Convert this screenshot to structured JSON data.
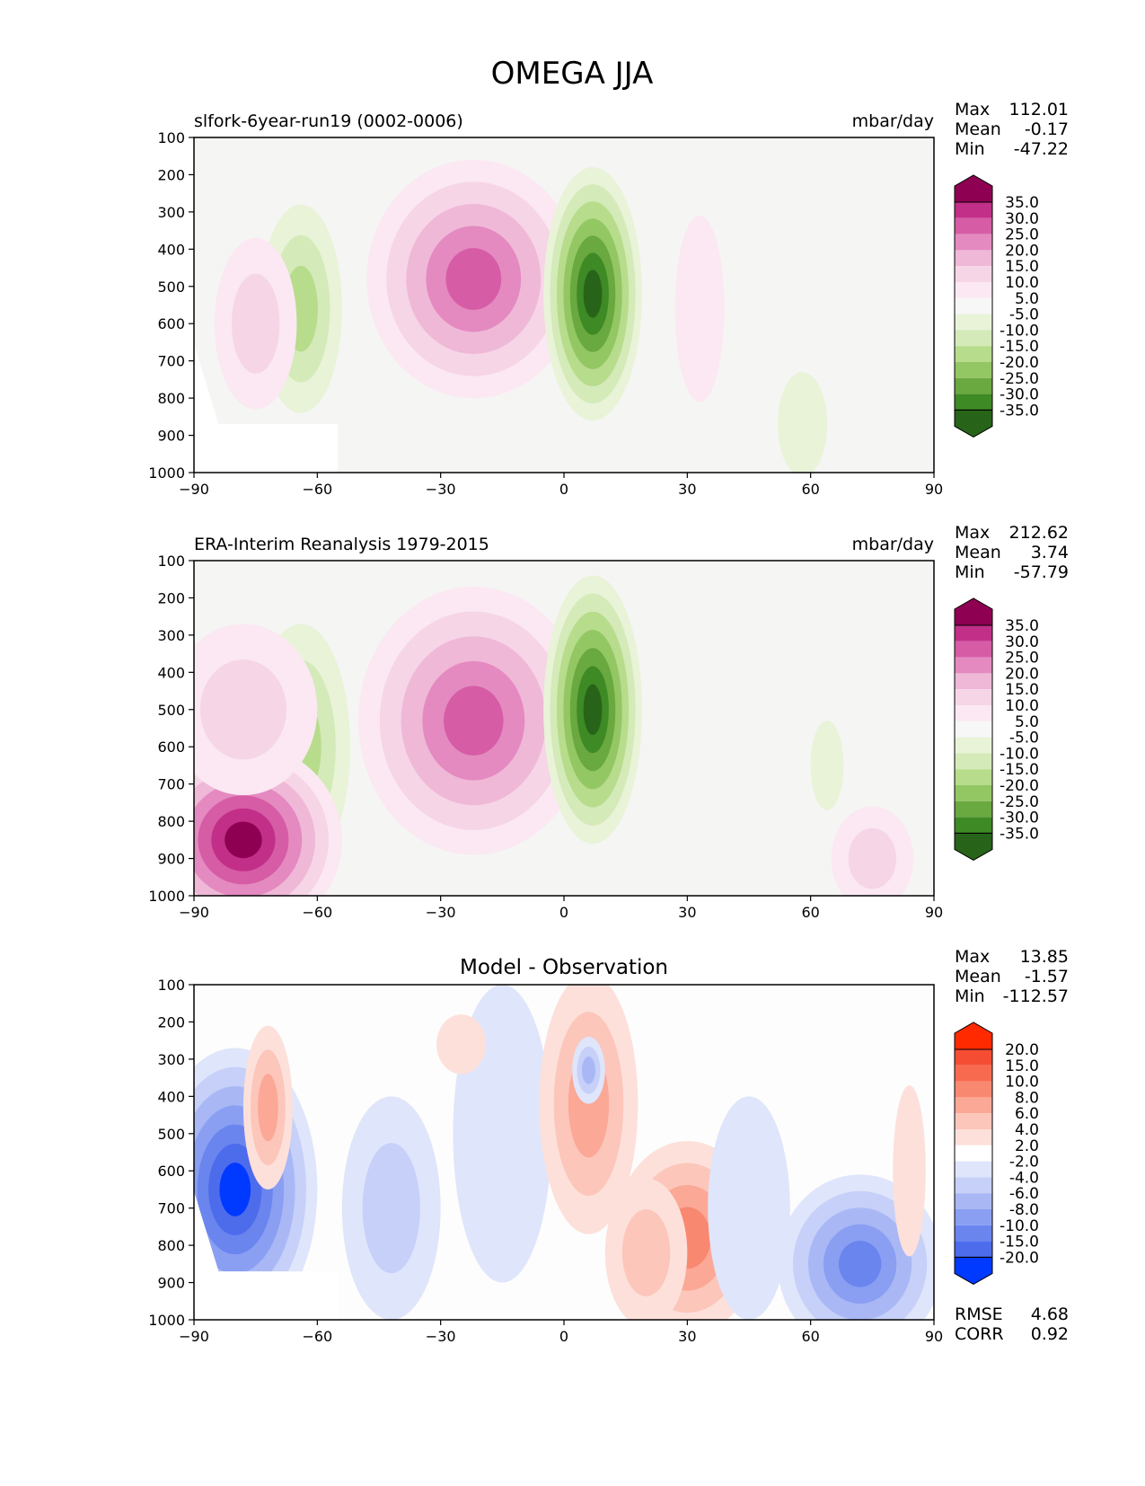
{
  "figure_title": "OMEGA JJA",
  "colors": {
    "frame": "#000000",
    "background_panel": "#f5f5f3",
    "pink": [
      "#fbe8f2",
      "#f6d5e7",
      "#efb8d7",
      "#e48ac0",
      "#d65ca6",
      "#c22f88",
      "#8e0152"
    ],
    "green": [
      "#e8f3d8",
      "#d4eab8",
      "#b7dc8c",
      "#93c763",
      "#6aa840",
      "#3e8a25",
      "#276419"
    ],
    "red": [
      "#fde0da",
      "#fcc6ba",
      "#fba896",
      "#f98870",
      "#f86a50",
      "#f54d33",
      "#ff2a00"
    ],
    "blue": [
      "#dfe5fb",
      "#c6d0f8",
      "#a9b8f5",
      "#8a9ff2",
      "#6b85ef",
      "#4d6cec",
      "#0039ff"
    ]
  },
  "chart_data": [
    {
      "type": "contour",
      "panel": "model",
      "title_left": "slfork-6year-run19 (0002-0006)",
      "title_right": "mbar/day",
      "stats": {
        "max_label": "Max",
        "max": "112.01",
        "mean_label": "Mean",
        "mean": "-0.17",
        "min_label": "Min",
        "min": "-47.22"
      },
      "x_ticks": [
        "−90",
        "−60",
        "−30",
        "0",
        "30",
        "60",
        "90"
      ],
      "x_values": [
        -90,
        -60,
        -30,
        0,
        30,
        60,
        90
      ],
      "y_ticks": [
        "100",
        "200",
        "300",
        "400",
        "500",
        "600",
        "700",
        "800",
        "900",
        "1000"
      ],
      "y_values": [
        100,
        200,
        300,
        400,
        500,
        600,
        700,
        800,
        900,
        1000
      ],
      "xlim": [
        -90,
        90
      ],
      "ylim": [
        1000,
        100
      ],
      "colorbar_labels": [
        "35.0",
        "30.0",
        "25.0",
        "20.0",
        "15.0",
        "10.0",
        "5.0",
        "-5.0",
        "-10.0",
        "-15.0",
        "-20.0",
        "-25.0",
        "-30.0",
        "-35.0"
      ],
      "features": [
        {
          "kind": "pink",
          "lat": -22,
          "p": 480,
          "w": 13,
          "h": 320,
          "levels": 5
        },
        {
          "kind": "green",
          "lat": 7,
          "p": 520,
          "w": 6,
          "h": 340,
          "levels": 7
        },
        {
          "kind": "green",
          "lat": -64,
          "p": 560,
          "w": 5,
          "h": 280,
          "levels": 3
        },
        {
          "kind": "pink",
          "lat": -75,
          "p": 600,
          "w": 5,
          "h": 230,
          "levels": 2
        },
        {
          "kind": "pink",
          "lat": 33,
          "p": 560,
          "w": 3,
          "h": 250,
          "levels": 1
        },
        {
          "kind": "green",
          "lat": 58,
          "p": 870,
          "w": 3,
          "h": 140,
          "levels": 1
        }
      ]
    },
    {
      "type": "contour",
      "panel": "observation",
      "title_left": "ERA-Interim Reanalysis 1979-2015",
      "title_right": "mbar/day",
      "stats": {
        "max_label": "Max",
        "max": "212.62",
        "mean_label": "Mean",
        "mean": "3.74",
        "min_label": "Min",
        "min": "-57.79"
      },
      "x_ticks": [
        "−90",
        "−60",
        "−30",
        "0",
        "30",
        "60",
        "90"
      ],
      "x_values": [
        -90,
        -60,
        -30,
        0,
        30,
        60,
        90
      ],
      "y_ticks": [
        "100",
        "200",
        "300",
        "400",
        "500",
        "600",
        "700",
        "800",
        "900",
        "1000"
      ],
      "y_values": [
        100,
        200,
        300,
        400,
        500,
        600,
        700,
        800,
        900,
        1000
      ],
      "xlim": [
        -90,
        90
      ],
      "ylim": [
        1000,
        100
      ],
      "colorbar_labels": [
        "35.0",
        "30.0",
        "25.0",
        "20.0",
        "15.0",
        "10.0",
        "5.0",
        "-5.0",
        "-10.0",
        "-15.0",
        "-20.0",
        "-25.0",
        "-30.0",
        "-35.0"
      ],
      "features": [
        {
          "kind": "pink",
          "lat": -22,
          "p": 530,
          "w": 14,
          "h": 360,
          "levels": 5
        },
        {
          "kind": "green",
          "lat": 7,
          "p": 500,
          "w": 6,
          "h": 360,
          "levels": 7
        },
        {
          "kind": "green",
          "lat": -64,
          "p": 600,
          "w": 6,
          "h": 330,
          "levels": 3
        },
        {
          "kind": "pink",
          "lat": -78,
          "p": 850,
          "w": 12,
          "h": 260,
          "levels": 7
        },
        {
          "kind": "pink",
          "lat": -78,
          "p": 500,
          "w": 9,
          "h": 230,
          "levels": 2
        },
        {
          "kind": "pink",
          "lat": 75,
          "p": 900,
          "w": 5,
          "h": 140,
          "levels": 2
        },
        {
          "kind": "green",
          "lat": 64,
          "p": 650,
          "w": 2,
          "h": 120,
          "levels": 1
        }
      ]
    },
    {
      "type": "contour",
      "panel": "difference",
      "title_center": "Model - Observation",
      "stats": {
        "max_label": "Max",
        "max": "13.85",
        "mean_label": "Mean",
        "mean": "-1.57",
        "min_label": "Min",
        "min": "-112.57"
      },
      "x_ticks": [
        "−90",
        "−60",
        "−30",
        "0",
        "30",
        "60",
        "90"
      ],
      "x_values": [
        -90,
        -60,
        -30,
        0,
        30,
        60,
        90
      ],
      "y_ticks": [
        "100",
        "200",
        "300",
        "400",
        "500",
        "600",
        "700",
        "800",
        "900",
        "1000"
      ],
      "y_values": [
        100,
        200,
        300,
        400,
        500,
        600,
        700,
        800,
        900,
        1000
      ],
      "xlim": [
        -90,
        90
      ],
      "ylim": [
        1000,
        100
      ],
      "colorbar_labels": [
        "20.0",
        "15.0",
        "10.0",
        "8.0",
        "6.0",
        "4.0",
        "2.0",
        "-2.0",
        "-4.0",
        "-6.0",
        "-8.0",
        "-10.0",
        "-15.0",
        "-20.0"
      ],
      "metrics": {
        "rmse_label": "RMSE",
        "rmse": "4.68",
        "corr_label": "CORR",
        "corr": "0.92"
      },
      "features": [
        {
          "kind": "blue",
          "lat": -80,
          "p": 650,
          "w": 10,
          "h": 380,
          "levels": 7
        },
        {
          "kind": "red",
          "lat": -72,
          "p": 430,
          "w": 3,
          "h": 220,
          "levels": 3
        },
        {
          "kind": "blue",
          "lat": -42,
          "p": 700,
          "w": 6,
          "h": 300,
          "levels": 2
        },
        {
          "kind": "blue",
          "lat": -15,
          "p": 500,
          "w": 6,
          "h": 400,
          "levels": 1
        },
        {
          "kind": "red",
          "lat": -25,
          "p": 260,
          "w": 3,
          "h": 80,
          "levels": 1
        },
        {
          "kind": "red",
          "lat": 6,
          "p": 420,
          "w": 6,
          "h": 350,
          "levels": 3
        },
        {
          "kind": "blue",
          "lat": 6,
          "p": 330,
          "w": 2,
          "h": 90,
          "levels": 3
        },
        {
          "kind": "red",
          "lat": 30,
          "p": 780,
          "w": 9,
          "h": 260,
          "levels": 4
        },
        {
          "kind": "red",
          "lat": 20,
          "p": 820,
          "w": 5,
          "h": 200,
          "levels": 2
        },
        {
          "kind": "blue",
          "lat": 72,
          "p": 850,
          "w": 10,
          "h": 240,
          "levels": 5
        },
        {
          "kind": "red",
          "lat": 84,
          "p": 600,
          "w": 2,
          "h": 230,
          "levels": 1
        },
        {
          "kind": "blue",
          "lat": 45,
          "p": 700,
          "w": 5,
          "h": 300,
          "levels": 1
        }
      ]
    }
  ]
}
